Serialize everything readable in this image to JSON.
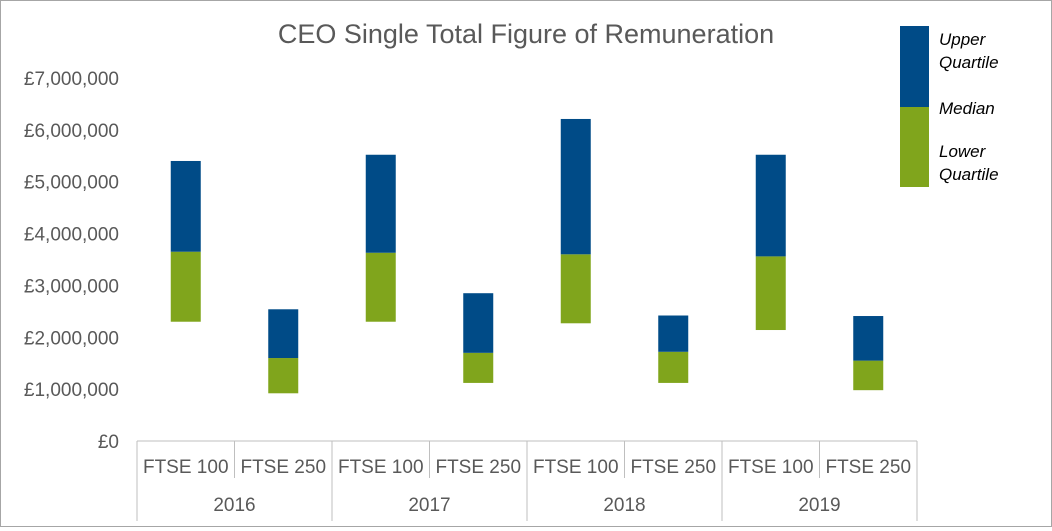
{
  "chart_data": {
    "type": "bar",
    "subtype": "floating-stacked",
    "title": "CEO Single Total Figure of Remuneration",
    "xlabel": "",
    "ylabel": "",
    "ylim": [
      0,
      7000000
    ],
    "y_ticks": [
      0,
      1000000,
      2000000,
      3000000,
      4000000,
      5000000,
      6000000,
      7000000
    ],
    "y_tick_labels": [
      "£0",
      "£1,000,000",
      "£2,000,000",
      "£3,000,000",
      "£4,000,000",
      "£5,000,000",
      "£6,000,000",
      "£7,000,000"
    ],
    "groups": [
      "2016",
      "2017",
      "2018",
      "2019"
    ],
    "categories": [
      "FTSE 100",
      "FTSE 250",
      "FTSE 100",
      "FTSE 250",
      "FTSE 100",
      "FTSE 250",
      "FTSE 100",
      "FTSE 250"
    ],
    "category_group": [
      "2016",
      "2016",
      "2017",
      "2017",
      "2018",
      "2018",
      "2019",
      "2019"
    ],
    "series": [
      {
        "name": "Lower Quartile",
        "values": [
          2300000,
          920000,
          2300000,
          1120000,
          2270000,
          1120000,
          2140000,
          980000
        ]
      },
      {
        "name": "Median",
        "values": [
          3650000,
          1600000,
          3630000,
          1700000,
          3600000,
          1720000,
          3560000,
          1550000
        ]
      },
      {
        "name": "Upper Quartile",
        "values": [
          5400000,
          2540000,
          5520000,
          2850000,
          6210000,
          2420000,
          5520000,
          2410000
        ]
      }
    ],
    "legend": {
      "placement": "top-right",
      "items": [
        {
          "label": "Upper Quartile",
          "color": "#004b87"
        },
        {
          "label": "Median",
          "color": ""
        },
        {
          "label": "Lower Quartile",
          "color": "#80a51c"
        }
      ]
    },
    "colors": {
      "upper": "#004b87",
      "lower": "#80a51c",
      "text": "#595959",
      "axis": "#bfbfbf"
    },
    "grid": false
  }
}
